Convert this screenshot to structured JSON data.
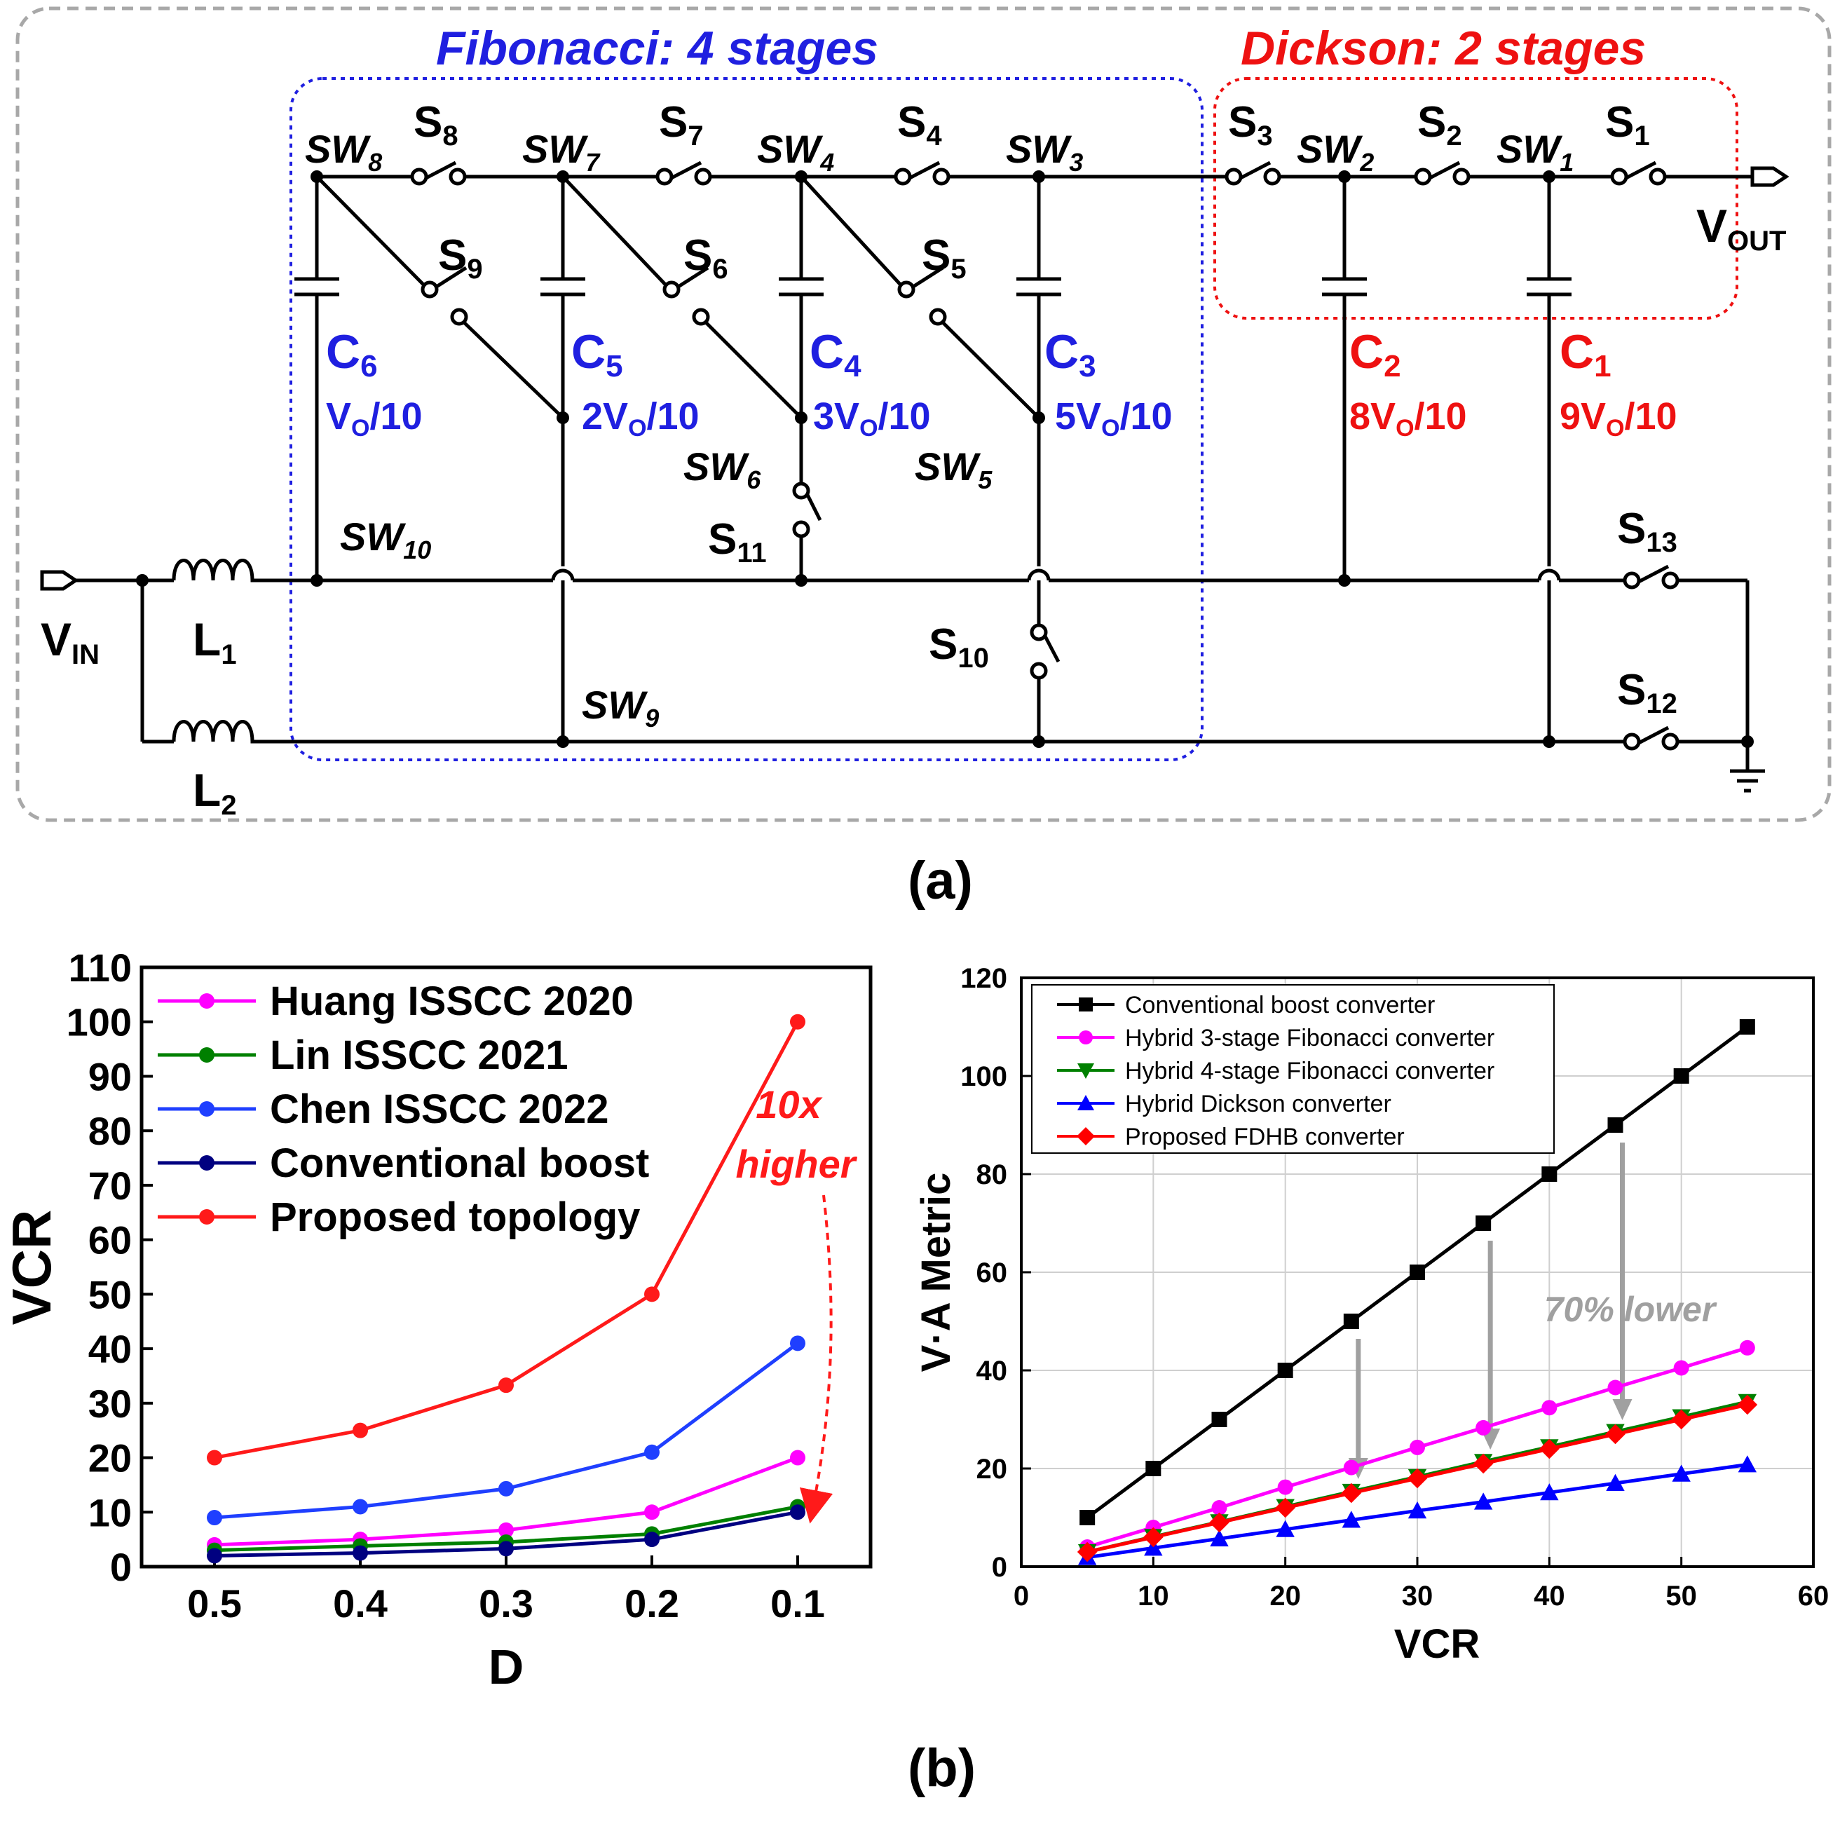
{
  "panel_a": {
    "label": "(a)",
    "fib_title": "Fibonacci: 4 stages",
    "dick_title": "Dickson: 2 stages",
    "vin": "V",
    "vin_sub": "IN",
    "vout": "V",
    "vout_sub": "OUT",
    "l1": "L",
    "l1_sub": "1",
    "l2": "L",
    "l2_sub": "2",
    "switch_nodes": {
      "sw8": "SW",
      "sw8_sub": "8",
      "sw7": "SW",
      "sw7_sub": "7",
      "sw4": "SW",
      "sw4_sub": "4",
      "sw3": "SW",
      "sw3_sub": "3",
      "sw2": "SW",
      "sw2_sub": "2",
      "sw1": "SW",
      "sw1_sub": "1",
      "sw6": "SW",
      "sw6_sub": "6",
      "sw5": "SW",
      "sw5_sub": "5",
      "sw10": "SW",
      "sw10_sub": "10",
      "sw9": "SW",
      "sw9_sub": "9"
    },
    "switches": {
      "s8": "S",
      "s8_sub": "8",
      "s7": "S",
      "s7_sub": "7",
      "s4": "S",
      "s4_sub": "4",
      "s3": "S",
      "s3_sub": "3",
      "s2": "S",
      "s2_sub": "2",
      "s1": "S",
      "s1_sub": "1",
      "s9": "S",
      "s9_sub": "9",
      "s6": "S",
      "s6_sub": "6",
      "s5": "S",
      "s5_sub": "5",
      "s11": "S",
      "s11_sub": "11",
      "s10": "S",
      "s10_sub": "10",
      "s13": "S",
      "s13_sub": "13",
      "s12": "S",
      "s12_sub": "12"
    },
    "caps": {
      "c6": "C",
      "c6_sub": "6",
      "c6_v_pre": "V",
      "c6_v_sub": "O",
      "c6_v_post": "/10",
      "c5": "C",
      "c5_sub": "5",
      "c5_v_pre": "2V",
      "c5_v_sub": "O",
      "c5_v_post": "/10",
      "c4": "C",
      "c4_sub": "4",
      "c4_v_pre": "3V",
      "c4_v_sub": "O",
      "c4_v_post": "/10",
      "c3": "C",
      "c3_sub": "3",
      "c3_v_pre": "5V",
      "c3_v_sub": "O",
      "c3_v_post": "/10",
      "c2": "C",
      "c2_sub": "2",
      "c2_v_pre": "8V",
      "c2_v_sub": "O",
      "c2_v_post": "/10",
      "c1": "C",
      "c1_sub": "1",
      "c1_v_pre": "9V",
      "c1_v_sub": "O",
      "c1_v_post": "/10"
    }
  },
  "panel_b_label": "(b)",
  "colors": {
    "huang": "#ff00ff",
    "lin": "#008000",
    "chen": "#1f3fff",
    "conv": "#000080",
    "proposed": "#ff1a1a",
    "black": "#000000",
    "magenta": "#ff00ff",
    "green": "#008000",
    "blue": "#0000ff",
    "red": "#ff0000",
    "arrow_gray": "#a0a0a0"
  },
  "chart_data": [
    {
      "type": "line",
      "xlabel": "D",
      "ylabel": "VCR",
      "x": [
        0.5,
        0.4,
        0.3,
        0.2,
        0.1
      ],
      "xticks": [
        "0.5",
        "0.4",
        "0.3",
        "0.2",
        "0.1"
      ],
      "xlim": [
        0.55,
        0.05
      ],
      "ylim": [
        0,
        110
      ],
      "yticks": [
        "0",
        "10",
        "20",
        "30",
        "40",
        "50",
        "60",
        "70",
        "80",
        "90",
        "100",
        "110"
      ],
      "legend_position": "top-left",
      "series": [
        {
          "name": "Huang ISSCC 2020",
          "values": [
            4,
            5,
            6.7,
            10,
            20
          ]
        },
        {
          "name": "Lin ISSCC 2021",
          "values": [
            3,
            3.8,
            4.5,
            6,
            11
          ]
        },
        {
          "name": "Chen ISSCC 2022",
          "values": [
            9,
            11,
            14.3,
            21,
            41
          ]
        },
        {
          "name": "Conventional boost",
          "values": [
            2,
            2.5,
            3.3,
            5,
            10
          ]
        },
        {
          "name": "Proposed topology",
          "values": [
            20,
            25,
            33.3,
            50,
            100
          ]
        }
      ],
      "annotation": {
        "line1": "10x",
        "line2": "higher"
      }
    },
    {
      "type": "line",
      "xlabel": "VCR",
      "ylabel": "V·A Metric",
      "x": [
        5,
        10,
        15,
        20,
        25,
        30,
        35,
        40,
        45,
        50,
        55
      ],
      "xlim": [
        0,
        60
      ],
      "ylim": [
        0,
        120
      ],
      "xticks": [
        "0",
        "10",
        "20",
        "30",
        "40",
        "50",
        "60"
      ],
      "yticks": [
        "0",
        "20",
        "40",
        "60",
        "80",
        "100",
        "120"
      ],
      "grid": true,
      "legend_position": "top-left",
      "series": [
        {
          "name": "Conventional boost converter",
          "marker": "square",
          "values": [
            10,
            20,
            30,
            40,
            50,
            60,
            70,
            80,
            90,
            100,
            110
          ]
        },
        {
          "name": "Hybrid 3-stage Fibonacci converter",
          "marker": "circle",
          "values": [
            4,
            8,
            12,
            16.2,
            20.2,
            24.3,
            28.3,
            32.4,
            36.5,
            40.5,
            44.6
          ]
        },
        {
          "name": "Hybrid 4-stage Fibonacci converter",
          "marker": "triangle-down",
          "values": [
            3,
            6.1,
            9.1,
            12.2,
            15.3,
            18.3,
            21.4,
            24.4,
            27.5,
            30.5,
            33.6
          ]
        },
        {
          "name": "Hybrid Dickson converter",
          "marker": "triangle-up",
          "values": [
            1.9,
            3.8,
            5.7,
            7.6,
            9.5,
            11.4,
            13.2,
            15.1,
            17,
            18.9,
            20.8
          ]
        },
        {
          "name": "Proposed FDHB converter",
          "marker": "diamond",
          "values": [
            3,
            6,
            9,
            12,
            15,
            18,
            21,
            24,
            27,
            30,
            33
          ]
        }
      ],
      "annotation": "70% lower",
      "arrows_at_vcr": [
        25,
        35,
        45
      ]
    }
  ]
}
